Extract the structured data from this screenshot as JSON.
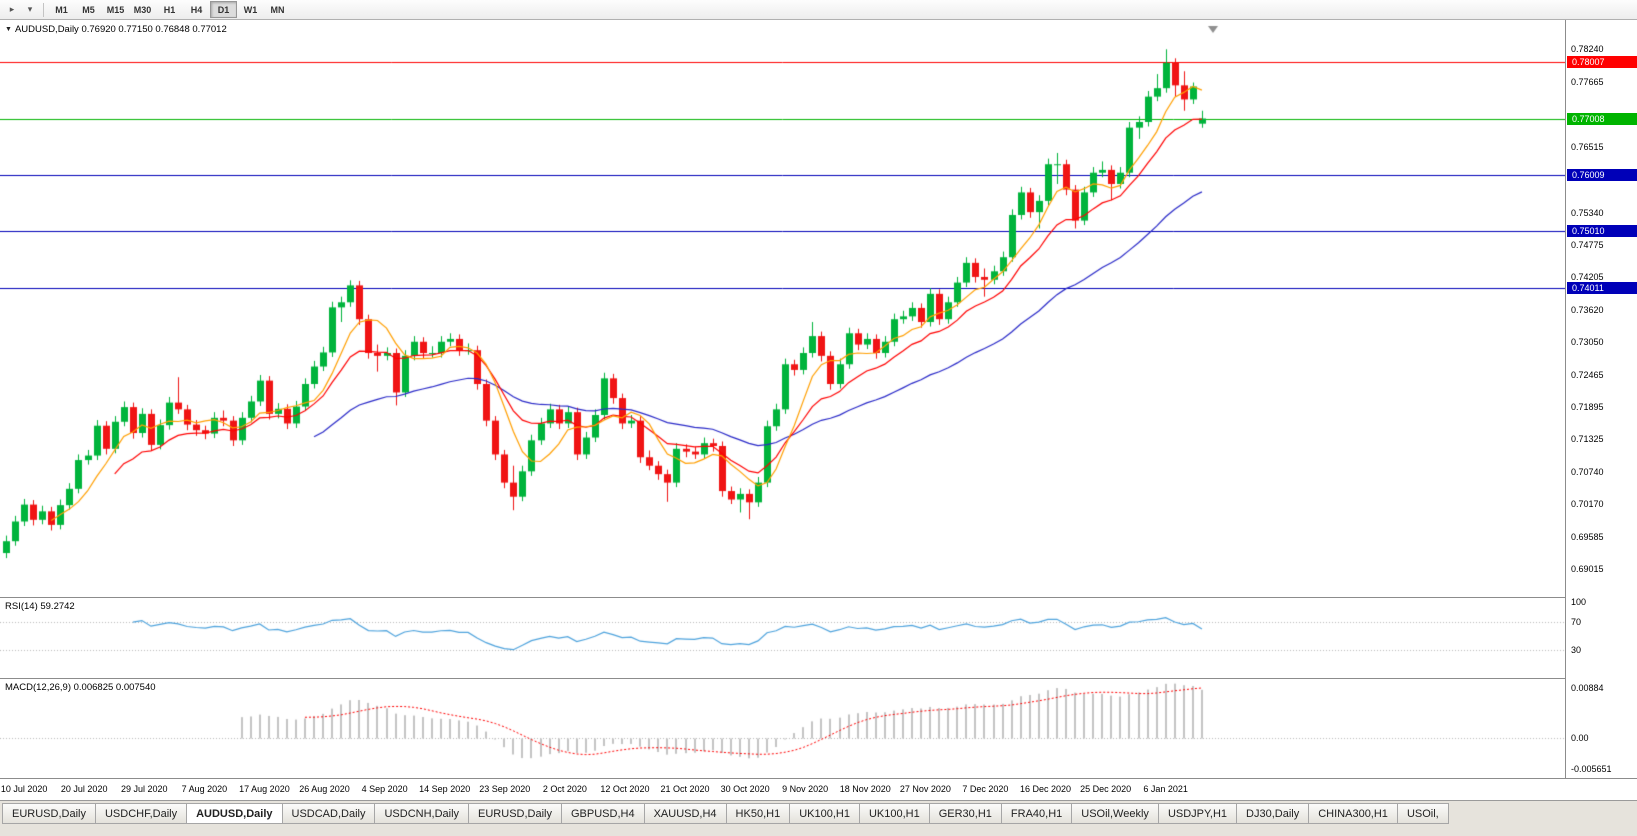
{
  "toolbar": {
    "icons": [
      {
        "name": "chart-scroll-icon",
        "glyph": "▸"
      },
      {
        "name": "chart-dropdown-icon",
        "glyph": "▾"
      }
    ],
    "timeframes": [
      "M1",
      "M5",
      "M15",
      "M30",
      "H1",
      "H4",
      "D1",
      "W1",
      "MN"
    ],
    "active_timeframe": "D1"
  },
  "chart": {
    "title_symbol": "AUDUSD,Daily",
    "title_ohlc": "0.76920 0.77150 0.76848 0.77012"
  },
  "chart_data": {
    "type": "candlestick",
    "symbol": "AUDUSD",
    "timeframe": "Daily",
    "last_ohlc": {
      "open": "0.76920",
      "high": "0.77150",
      "low": "0.76848",
      "close": "0.77012"
    },
    "price_axis": {
      "min": 0.6852,
      "max": 0.7876,
      "ticks": [
        "0.78240",
        "0.77665",
        "0.76515",
        "0.75340",
        "0.74775",
        "0.74205",
        "0.73620",
        "0.73050",
        "0.72465",
        "0.71895",
        "0.71325",
        "0.70740",
        "0.70170",
        "0.69585",
        "0.69015"
      ]
    },
    "x_ticks": [
      "10 Jul 2020",
      "20 Jul 2020",
      "29 Jul 2020",
      "7 Aug 2020",
      "17 Aug 2020",
      "26 Aug 2020",
      "4 Sep 2020",
      "14 Sep 2020",
      "23 Sep 2020",
      "2 Oct 2020",
      "12 Oct 2020",
      "21 Oct 2020",
      "30 Oct 2020",
      "9 Nov 2020",
      "18 Nov 2020",
      "27 Nov 2020",
      "7 Dec 2020",
      "16 Dec 2020",
      "25 Dec 2020",
      "6 Jan 2021"
    ],
    "horizontal_levels": [
      {
        "label": "0.78007",
        "price": 0.78007,
        "color": "#ff0000"
      },
      {
        "label": "0.77008",
        "price": 0.77008,
        "color": "#00b400"
      },
      {
        "label": "0.76009",
        "price": 0.76009,
        "color": "#0000b8"
      },
      {
        "label": "0.75010",
        "price": 0.7501,
        "color": "#0000b8"
      },
      {
        "label": "0.74011",
        "price": 0.74011,
        "color": "#0000b8"
      }
    ],
    "up_color": "#00b43c",
    "down_color": "#f01414",
    "overlays": [
      {
        "name": "ma-slow",
        "type": "ema",
        "period": 34,
        "color": "#2929c8"
      },
      {
        "name": "ma-mid",
        "type": "ema",
        "period": 12,
        "color": "#ff0000"
      },
      {
        "name": "ma-fast",
        "type": "sma",
        "period": 6,
        "color": "#ff9f00"
      }
    ],
    "indicators": [
      {
        "name": "RSI",
        "label": "RSI(14) 59.2742",
        "period": 14,
        "value": 59.2742,
        "levels": [
          100,
          70,
          30
        ],
        "color": "#4ea3dd"
      },
      {
        "name": "MACD",
        "label": "MACD(12,26,9) 0.006825 0.007540",
        "fast": 12,
        "slow": 26,
        "signal": 9,
        "value": 0.006825,
        "signal_value": 0.00754,
        "axis_labels": [
          "0.00884",
          "0.00",
          "-0.005651"
        ],
        "histogram_color": "#c4c4c4",
        "signal_color": "#ff0000"
      }
    ],
    "candles": [
      [
        0.693,
        0.6961,
        0.6921,
        0.6951
      ],
      [
        0.6951,
        0.6996,
        0.6943,
        0.6986
      ],
      [
        0.6986,
        0.7026,
        0.6978,
        0.7016
      ],
      [
        0.7016,
        0.7024,
        0.6979,
        0.6989
      ],
      [
        0.6989,
        0.7014,
        0.6981,
        0.7004
      ],
      [
        0.7004,
        0.7012,
        0.697,
        0.698
      ],
      [
        0.698,
        0.7025,
        0.6972,
        0.7015
      ],
      [
        0.7015,
        0.7054,
        0.7007,
        0.7044
      ],
      [
        0.7044,
        0.7105,
        0.7036,
        0.7095
      ],
      [
        0.7095,
        0.7113,
        0.7087,
        0.7103
      ],
      [
        0.7103,
        0.7166,
        0.7095,
        0.7156
      ],
      [
        0.7156,
        0.7164,
        0.7105,
        0.7115
      ],
      [
        0.7115,
        0.7173,
        0.7107,
        0.7163
      ],
      [
        0.7163,
        0.7199,
        0.7155,
        0.7189
      ],
      [
        0.7189,
        0.7197,
        0.7133,
        0.7143
      ],
      [
        0.7143,
        0.7187,
        0.7135,
        0.7177
      ],
      [
        0.7177,
        0.7185,
        0.7112,
        0.7122
      ],
      [
        0.7122,
        0.7167,
        0.7114,
        0.7157
      ],
      [
        0.7157,
        0.7207,
        0.7149,
        0.7197
      ],
      [
        0.7197,
        0.7242,
        0.7177,
        0.7185
      ],
      [
        0.7185,
        0.7193,
        0.7148,
        0.7158
      ],
      [
        0.7158,
        0.7166,
        0.7138,
        0.7148
      ],
      [
        0.7148,
        0.7156,
        0.7132,
        0.7142
      ],
      [
        0.7142,
        0.718,
        0.7134,
        0.717
      ],
      [
        0.717,
        0.7183,
        0.7155,
        0.7165
      ],
      [
        0.7165,
        0.7173,
        0.712,
        0.713
      ],
      [
        0.713,
        0.718,
        0.7122,
        0.717
      ],
      [
        0.717,
        0.7209,
        0.7162,
        0.7199
      ],
      [
        0.7199,
        0.7246,
        0.7191,
        0.7236
      ],
      [
        0.7236,
        0.7244,
        0.7167,
        0.7177
      ],
      [
        0.7177,
        0.7196,
        0.7169,
        0.7186
      ],
      [
        0.7186,
        0.7194,
        0.715,
        0.716
      ],
      [
        0.716,
        0.72,
        0.7152,
        0.719
      ],
      [
        0.719,
        0.724,
        0.7182,
        0.723
      ],
      [
        0.723,
        0.7271,
        0.7222,
        0.7261
      ],
      [
        0.7261,
        0.7296,
        0.7253,
        0.7286
      ],
      [
        0.7286,
        0.7376,
        0.7278,
        0.7366
      ],
      [
        0.7366,
        0.7385,
        0.734,
        0.7375
      ],
      [
        0.7375,
        0.7414,
        0.7367,
        0.7405
      ],
      [
        0.7405,
        0.7413,
        0.7335,
        0.7345
      ],
      [
        0.7345,
        0.7353,
        0.7275,
        0.7285
      ],
      [
        0.7285,
        0.73,
        0.7252,
        0.728
      ],
      [
        0.728,
        0.7295,
        0.7272,
        0.7285
      ],
      [
        0.7285,
        0.7293,
        0.7192,
        0.7215
      ],
      [
        0.7215,
        0.729,
        0.7207,
        0.728
      ],
      [
        0.728,
        0.7315,
        0.7272,
        0.7305
      ],
      [
        0.7305,
        0.7313,
        0.7275,
        0.7285
      ],
      [
        0.7285,
        0.7297,
        0.7277,
        0.7285
      ],
      [
        0.7285,
        0.7315,
        0.7277,
        0.7305
      ],
      [
        0.7305,
        0.732,
        0.7297,
        0.731
      ],
      [
        0.731,
        0.7318,
        0.728,
        0.729
      ],
      [
        0.729,
        0.7302,
        0.7282,
        0.729
      ],
      [
        0.729,
        0.7298,
        0.722,
        0.723
      ],
      [
        0.723,
        0.7238,
        0.7155,
        0.7165
      ],
      [
        0.7165,
        0.7173,
        0.7095,
        0.7105
      ],
      [
        0.7105,
        0.7113,
        0.7045,
        0.7055
      ],
      [
        0.7055,
        0.7085,
        0.7006,
        0.703
      ],
      [
        0.703,
        0.7085,
        0.7022,
        0.7075
      ],
      [
        0.7075,
        0.714,
        0.7067,
        0.713
      ],
      [
        0.713,
        0.717,
        0.7122,
        0.716
      ],
      [
        0.716,
        0.7195,
        0.7152,
        0.7185
      ],
      [
        0.7185,
        0.7193,
        0.715,
        0.716
      ],
      [
        0.716,
        0.719,
        0.7152,
        0.718
      ],
      [
        0.718,
        0.7188,
        0.7095,
        0.7105
      ],
      [
        0.7105,
        0.7145,
        0.7097,
        0.7135
      ],
      [
        0.7135,
        0.7185,
        0.7127,
        0.7175
      ],
      [
        0.7175,
        0.725,
        0.7167,
        0.724
      ],
      [
        0.724,
        0.7248,
        0.7195,
        0.7205
      ],
      [
        0.7205,
        0.7213,
        0.715,
        0.716
      ],
      [
        0.716,
        0.7175,
        0.7152,
        0.7165
      ],
      [
        0.7165,
        0.7173,
        0.709,
        0.71
      ],
      [
        0.71,
        0.7112,
        0.7077,
        0.7085
      ],
      [
        0.7085,
        0.7093,
        0.706,
        0.707
      ],
      [
        0.707,
        0.7078,
        0.7021,
        0.7055
      ],
      [
        0.7055,
        0.7125,
        0.7047,
        0.7115
      ],
      [
        0.7115,
        0.7123,
        0.71,
        0.711
      ],
      [
        0.711,
        0.7118,
        0.7097,
        0.7105
      ],
      [
        0.7105,
        0.7135,
        0.7097,
        0.7125
      ],
      [
        0.7125,
        0.7133,
        0.711,
        0.712
      ],
      [
        0.712,
        0.7128,
        0.703,
        0.704
      ],
      [
        0.704,
        0.7048,
        0.7017,
        0.7025
      ],
      [
        0.7025,
        0.7045,
        0.7002,
        0.7035
      ],
      [
        0.7035,
        0.7043,
        0.699,
        0.702
      ],
      [
        0.702,
        0.7065,
        0.7012,
        0.7055
      ],
      [
        0.7055,
        0.7165,
        0.7047,
        0.7155
      ],
      [
        0.7155,
        0.7195,
        0.7147,
        0.7185
      ],
      [
        0.7185,
        0.7275,
        0.7177,
        0.7265
      ],
      [
        0.7265,
        0.7273,
        0.7245,
        0.7255
      ],
      [
        0.7255,
        0.7295,
        0.7247,
        0.7285
      ],
      [
        0.7285,
        0.734,
        0.7277,
        0.7315
      ],
      [
        0.7315,
        0.7323,
        0.727,
        0.728
      ],
      [
        0.728,
        0.7288,
        0.722,
        0.723
      ],
      [
        0.723,
        0.7275,
        0.7222,
        0.7265
      ],
      [
        0.7265,
        0.733,
        0.7257,
        0.732
      ],
      [
        0.732,
        0.7328,
        0.729,
        0.73
      ],
      [
        0.73,
        0.732,
        0.7292,
        0.731
      ],
      [
        0.731,
        0.7318,
        0.7275,
        0.7285
      ],
      [
        0.7285,
        0.7315,
        0.7277,
        0.7305
      ],
      [
        0.7305,
        0.7355,
        0.7297,
        0.7345
      ],
      [
        0.7345,
        0.736,
        0.7337,
        0.735
      ],
      [
        0.735,
        0.7375,
        0.7342,
        0.7365
      ],
      [
        0.7365,
        0.7373,
        0.733,
        0.734
      ],
      [
        0.734,
        0.74,
        0.7332,
        0.739
      ],
      [
        0.739,
        0.7398,
        0.7335,
        0.7345
      ],
      [
        0.7345,
        0.7385,
        0.7337,
        0.7375
      ],
      [
        0.7375,
        0.742,
        0.7367,
        0.741
      ],
      [
        0.741,
        0.7455,
        0.7402,
        0.7445
      ],
      [
        0.7445,
        0.7453,
        0.741,
        0.742
      ],
      [
        0.742,
        0.7435,
        0.7385,
        0.7415
      ],
      [
        0.7415,
        0.744,
        0.7407,
        0.743
      ],
      [
        0.743,
        0.7465,
        0.7422,
        0.7455
      ],
      [
        0.7455,
        0.754,
        0.7447,
        0.753
      ],
      [
        0.753,
        0.758,
        0.7522,
        0.757
      ],
      [
        0.757,
        0.7578,
        0.7525,
        0.7535
      ],
      [
        0.7535,
        0.7565,
        0.7506,
        0.7555
      ],
      [
        0.7555,
        0.763,
        0.7547,
        0.762
      ],
      [
        0.762,
        0.764,
        0.7585,
        0.762
      ],
      [
        0.762,
        0.7628,
        0.7565,
        0.7575
      ],
      [
        0.7575,
        0.7583,
        0.7506,
        0.752
      ],
      [
        0.752,
        0.758,
        0.7512,
        0.757
      ],
      [
        0.757,
        0.7615,
        0.7562,
        0.7605
      ],
      [
        0.7605,
        0.7625,
        0.7597,
        0.761
      ],
      [
        0.761,
        0.7618,
        0.7556,
        0.7585
      ],
      [
        0.7585,
        0.7615,
        0.7577,
        0.7605
      ],
      [
        0.7605,
        0.7695,
        0.7597,
        0.7685
      ],
      [
        0.7685,
        0.7705,
        0.7665,
        0.7695
      ],
      [
        0.7695,
        0.775,
        0.7687,
        0.774
      ],
      [
        0.774,
        0.778,
        0.7732,
        0.7755
      ],
      [
        0.7755,
        0.7824,
        0.7747,
        0.78
      ],
      [
        0.78,
        0.7808,
        0.774,
        0.776
      ],
      [
        0.776,
        0.7785,
        0.7715,
        0.7735
      ],
      [
        0.7735,
        0.7765,
        0.7727,
        0.7758
      ],
      [
        0.7692,
        0.7715,
        0.76848,
        0.77012
      ]
    ]
  },
  "tabs": {
    "items": [
      "EURUSD,Daily",
      "USDCHF,Daily",
      "AUDUSD,Daily",
      "USDCAD,Daily",
      "USDCNH,Daily",
      "EURUSD,Daily",
      "GBPUSD,H4",
      "XAUUSD,H4",
      "HK50,H1",
      "UK100,H1",
      "UK100,H1",
      "GER30,H1",
      "FRA40,H1",
      "USOil,Weekly",
      "USDJPY,H1",
      "DJ30,Daily",
      "CHINA300,H1",
      "USOil,"
    ],
    "active_index": 2
  }
}
